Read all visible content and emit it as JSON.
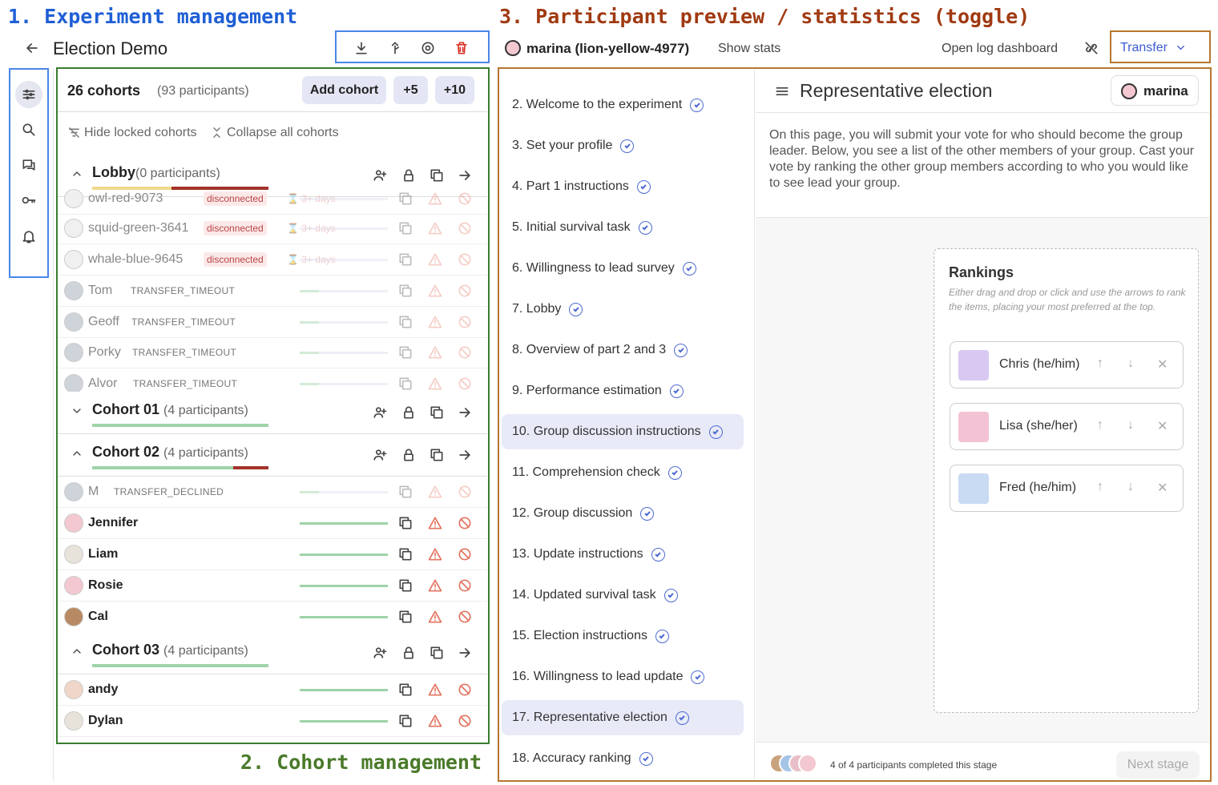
{
  "annotations": {
    "a1": "1. Experiment management",
    "a2": "2. Cohort management",
    "a3": "3. Participant preview / statistics (toggle)"
  },
  "header": {
    "title": "Election Demo",
    "participant": "marina (lion-yellow-4977)",
    "show_stats": "Show stats",
    "log": "Open log dashboard",
    "transfer": "Transfer"
  },
  "cohorts": {
    "count": "26 cohorts",
    "participants": "(93 participants)",
    "add": "Add cohort",
    "plus5": "+5",
    "plus10": "+10",
    "hide_locked": "Hide locked cohorts",
    "collapse": "Collapse all cohorts"
  },
  "lobby": {
    "name": "Lobby",
    "count": "(0 participants)"
  },
  "lobby_rows": [
    {
      "name": "owl-red-9073",
      "status": "disconnected",
      "time": "3+ days"
    },
    {
      "name": "squid-green-3641",
      "status": "disconnected",
      "time": "3+ days"
    },
    {
      "name": "whale-blue-9645",
      "status": "disconnected",
      "time": "3+ days"
    },
    {
      "name": "Tom",
      "status": "TRANSFER_TIMEOUT"
    },
    {
      "name": "Geoff",
      "status": "TRANSFER_TIMEOUT"
    },
    {
      "name": "Porky",
      "status": "TRANSFER_TIMEOUT"
    },
    {
      "name": "Alvor",
      "status": "TRANSFER_TIMEOUT"
    }
  ],
  "cohort01": {
    "name": "Cohort 01",
    "count": "(4 participants)"
  },
  "cohort02": {
    "name": "Cohort 02",
    "count": "(4 participants)"
  },
  "cohort02_rows": [
    {
      "name": "M",
      "status": "TRANSFER_DECLINED"
    },
    {
      "name": "Jennifer"
    },
    {
      "name": "Liam"
    },
    {
      "name": "Rosie"
    },
    {
      "name": "Cal"
    }
  ],
  "cohort03": {
    "name": "Cohort 03",
    "count": "(4 participants)"
  },
  "cohort03_rows": [
    {
      "name": "andy"
    },
    {
      "name": "Dylan"
    }
  ],
  "stages": [
    "2. Welcome to the experiment",
    "3. Set your profile",
    "4. Part 1 instructions",
    "5. Initial survival task",
    "6. Willingness to lead survey",
    "7. Lobby",
    "8. Overview of part 2 and 3",
    "9. Performance estimation",
    "10. Group discussion instructions",
    "11. Comprehension check",
    "12. Group discussion",
    "13. Update instructions",
    "14. Updated survival task",
    "15. Election instructions",
    "16. Willingness to lead update",
    "17. Representative election",
    "18. Accuracy ranking"
  ],
  "preview": {
    "title": "Representative election",
    "user": "marina",
    "desc": "On this page, you will submit your vote for who should become the group leader. Below, you see a list of the other members of your group. Cast your vote by ranking the other group members according to who you would like to see lead your group.",
    "rankings": "Rankings",
    "hint": "Either drag and drop or click and use the arrows to rank the items, placing your most preferred at the top.",
    "items": [
      "Chris (he/him)",
      "Lisa (she/her)",
      "Fred (he/him)"
    ],
    "footer": "4 of 4 participants completed this stage",
    "next": "Next stage"
  },
  "colors": {
    "accent": "#4f6bd1",
    "stage_selected": "#e8eaf8",
    "progress": "#9fd3a8",
    "lock_line": "#a3332a"
  }
}
